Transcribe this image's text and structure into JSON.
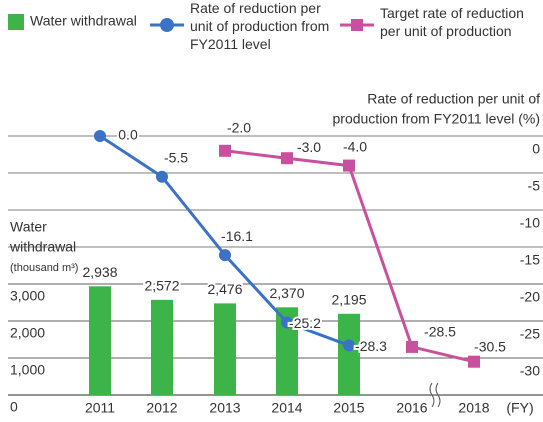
{
  "chart_data": {
    "type": "bar_line",
    "categories": [
      "2011",
      "2012",
      "2013",
      "2014",
      "2015",
      "2016",
      "2018"
    ],
    "x_label": "(FY)",
    "y_label": [
      "Water",
      "withdrawal",
      "(thousand m³)"
    ],
    "y2_label": [
      "Rate of reduction per unit of",
      "production from FY2011 level (%)"
    ],
    "series": [
      {
        "name": "Water withdrawal",
        "type": "bar",
        "color": "#3cb44a",
        "values": [
          2938,
          2572,
          2476,
          2370,
          2195,
          null,
          null
        ],
        "value_labels": [
          "2,938",
          "2,572",
          "2,476",
          "2,370",
          "2,195",
          null,
          null
        ]
      },
      {
        "name": "Rate of reduction per unit of production from FY2011 level",
        "type": "line",
        "marker": "circle",
        "axis": "y2",
        "color": "#3b72c6",
        "values": [
          0.0,
          -5.5,
          -16.1,
          -25.2,
          -28.3,
          null,
          null
        ],
        "value_labels": [
          "0.0",
          "-5.5",
          "-16.1",
          "-25.2",
          "-28.3",
          null,
          null
        ]
      },
      {
        "name": "Target rate of reduction per unit of production",
        "type": "line",
        "marker": "square",
        "axis": "y2",
        "color": "#c9509f",
        "values": [
          null,
          null,
          -2.0,
          -3.0,
          -4.0,
          -28.5,
          -30.5
        ],
        "value_labels": [
          null,
          null,
          "-2.0",
          "-3.0",
          "-4.0",
          "-28.5",
          "-30.5"
        ]
      }
    ],
    "ylim": [
      0,
      7000
    ],
    "yticks": [
      0,
      {
        "value": 1000,
        "label": "1,000"
      },
      {
        "value": 2000,
        "label": "2,000"
      },
      {
        "value": 3000,
        "label": "3,000"
      }
    ],
    "y2lim": [
      -35,
      0
    ],
    "y2ticks": [
      0,
      -5,
      -10,
      -15,
      -20,
      -25,
      -30
    ],
    "grid": true
  }
}
